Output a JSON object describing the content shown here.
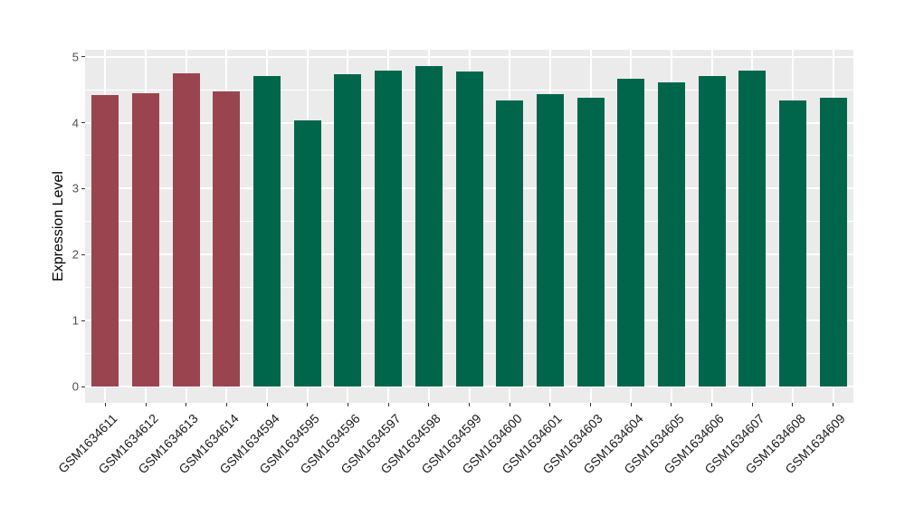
{
  "chart_data": {
    "type": "bar",
    "title": "",
    "xlabel": "",
    "ylabel": "Expression Level",
    "ylim": [
      0,
      5
    ],
    "yticks": [
      0,
      1,
      2,
      3,
      4,
      5
    ],
    "ytick_labels": [
      "0",
      "1",
      "2",
      "3",
      "4",
      "5"
    ],
    "grid": "on",
    "legend": "none",
    "categories": [
      "GSM1634611",
      "GSM1634612",
      "GSM1634613",
      "GSM1634614",
      "GSM1634594",
      "GSM1634595",
      "GSM1634596",
      "GSM1634597",
      "GSM1634598",
      "GSM1634599",
      "GSM1634600",
      "GSM1634601",
      "GSM1634603",
      "GSM1634604",
      "GSM1634605",
      "GSM1634606",
      "GSM1634607",
      "GSM1634608",
      "GSM1634609"
    ],
    "values": [
      4.42,
      4.45,
      4.75,
      4.47,
      4.71,
      4.03,
      4.73,
      4.79,
      4.86,
      4.77,
      4.33,
      4.43,
      4.38,
      4.66,
      4.61,
      4.7,
      4.79,
      4.33,
      4.38
    ],
    "bar_colors": [
      "#9a4450",
      "#9a4450",
      "#9a4450",
      "#9a4450",
      "#00664b",
      "#00664b",
      "#00664b",
      "#00664b",
      "#00664b",
      "#00664b",
      "#00664b",
      "#00664b",
      "#00664b",
      "#00664b",
      "#00664b",
      "#00664b",
      "#00664b",
      "#00664b",
      "#00664b"
    ],
    "group_colors": {
      "group1": "#9a4450",
      "group2": "#00664b"
    },
    "panel_background": "#ebebeb",
    "gridline_color": "#ffffff",
    "axis_text_color": "#4d4d4d",
    "tick_mark_color": "#333333"
  }
}
